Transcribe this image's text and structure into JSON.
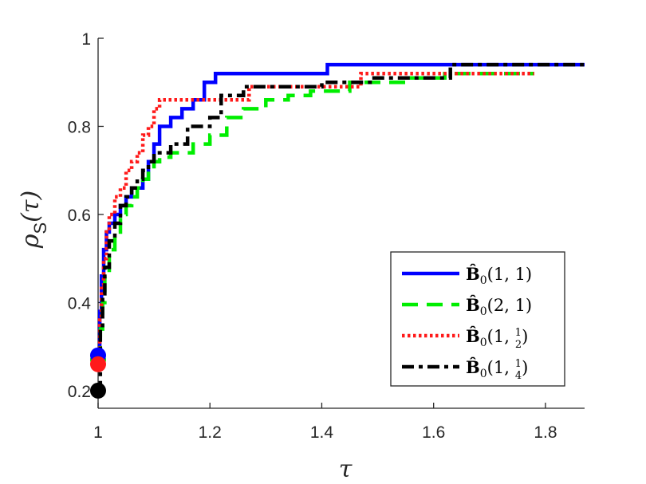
{
  "chart_data": {
    "type": "line",
    "title": "",
    "xlabel": "τ",
    "ylabel_main": "ρ",
    "ylabel_sub": "S",
    "ylabel_tail": "(τ)",
    "xlim": [
      1,
      1.87
    ],
    "ylim": [
      0.16,
      1.0
    ],
    "xticks": [
      1,
      1.2,
      1.4,
      1.6,
      1.8
    ],
    "xtick_labels": [
      "1",
      "1.2",
      "1.4",
      "1.6",
      "1.8"
    ],
    "yticks": [
      0.2,
      0.4,
      0.6,
      0.8,
      1.0
    ],
    "ytick_labels": [
      "0.2",
      "0.4",
      "0.6",
      "0.8",
      "1"
    ],
    "grid": false,
    "legend_position": "bottom-right",
    "series": [
      {
        "name_main": "B̂",
        "name_sub": "0",
        "name_args": "(1, 1)",
        "color": "#0000ff",
        "dash": "solid",
        "start_marker": 0.28,
        "x": [
          1.0,
          1.003,
          1.006,
          1.01,
          1.015,
          1.02,
          1.03,
          1.04,
          1.05,
          1.06,
          1.07,
          1.08,
          1.09,
          1.1,
          1.11,
          1.13,
          1.15,
          1.17,
          1.19,
          1.21,
          1.3,
          1.41,
          1.87
        ],
        "y": [
          0.28,
          0.38,
          0.46,
          0.52,
          0.56,
          0.58,
          0.6,
          0.62,
          0.64,
          0.66,
          0.66,
          0.68,
          0.72,
          0.76,
          0.8,
          0.82,
          0.84,
          0.86,
          0.9,
          0.92,
          0.92,
          0.94,
          0.94
        ]
      },
      {
        "name_main": "B̂",
        "name_sub": "0",
        "name_args": "(2, 1)",
        "color": "#00ee00",
        "dash": "dashed",
        "start_marker": 0.27,
        "x": [
          1.0,
          1.004,
          1.008,
          1.012,
          1.02,
          1.03,
          1.04,
          1.05,
          1.06,
          1.07,
          1.08,
          1.09,
          1.1,
          1.11,
          1.13,
          1.17,
          1.2,
          1.23,
          1.26,
          1.3,
          1.34,
          1.38,
          1.45,
          1.55,
          1.62,
          1.78
        ],
        "y": [
          0.27,
          0.34,
          0.4,
          0.46,
          0.52,
          0.56,
          0.6,
          0.62,
          0.64,
          0.66,
          0.68,
          0.7,
          0.72,
          0.73,
          0.74,
          0.76,
          0.78,
          0.82,
          0.84,
          0.86,
          0.87,
          0.88,
          0.9,
          0.91,
          0.92,
          0.92
        ]
      },
      {
        "name_main": "B̂",
        "name_sub": "0",
        "name_args": "(1, 1/2)",
        "frac_num": "1",
        "frac_den": "2",
        "color": "#ff1a1a",
        "dash": "dotted",
        "start_marker": 0.26,
        "x": [
          1.0,
          1.003,
          1.006,
          1.01,
          1.015,
          1.02,
          1.03,
          1.04,
          1.05,
          1.06,
          1.07,
          1.08,
          1.09,
          1.1,
          1.11,
          1.12,
          1.2,
          1.27,
          1.47,
          1.78
        ],
        "y": [
          0.26,
          0.36,
          0.44,
          0.5,
          0.56,
          0.6,
          0.64,
          0.66,
          0.7,
          0.72,
          0.74,
          0.78,
          0.8,
          0.84,
          0.86,
          0.86,
          0.86,
          0.89,
          0.92,
          0.92
        ]
      },
      {
        "name_main": "B̂",
        "name_sub": "0",
        "name_args": "(1, 1/4)",
        "frac_num": "1",
        "frac_den": "4",
        "color": "#000000",
        "dash": "dashdot",
        "start_marker": 0.2,
        "x": [
          1.0,
          1.004,
          1.008,
          1.012,
          1.02,
          1.03,
          1.04,
          1.05,
          1.06,
          1.07,
          1.08,
          1.09,
          1.1,
          1.11,
          1.13,
          1.16,
          1.2,
          1.22,
          1.26,
          1.4,
          1.49,
          1.63,
          1.87
        ],
        "y": [
          0.2,
          0.34,
          0.42,
          0.48,
          0.54,
          0.58,
          0.62,
          0.64,
          0.66,
          0.68,
          0.7,
          0.72,
          0.74,
          0.74,
          0.76,
          0.8,
          0.82,
          0.87,
          0.89,
          0.9,
          0.91,
          0.94,
          0.94
        ]
      }
    ]
  }
}
